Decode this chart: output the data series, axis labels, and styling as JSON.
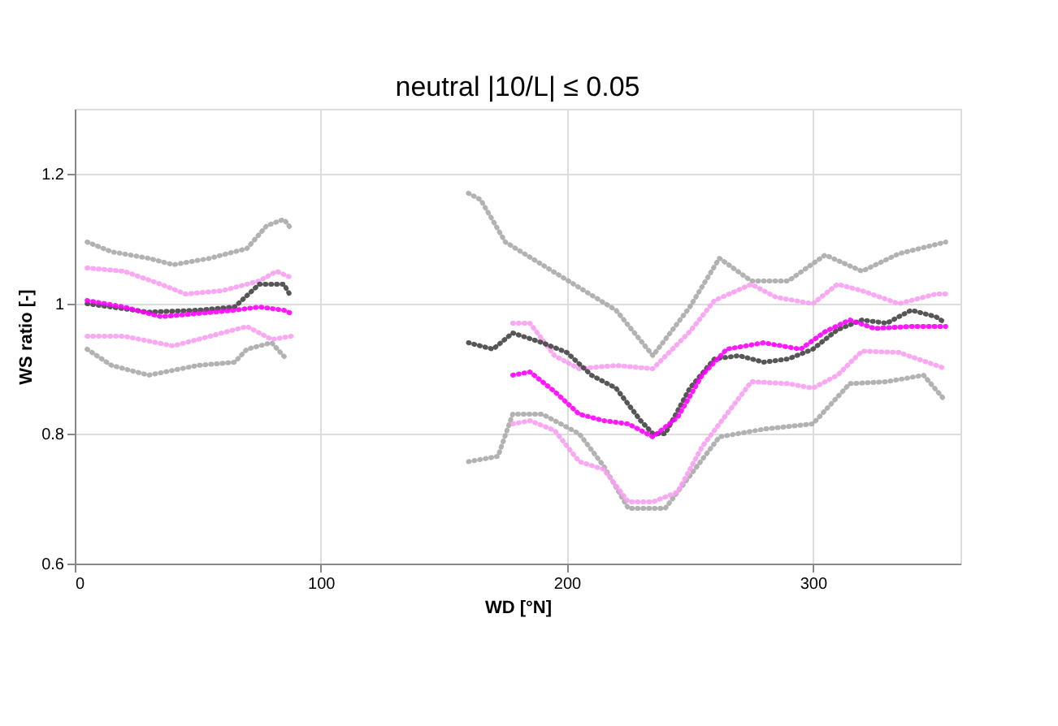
{
  "chart_data": {
    "type": "line",
    "title": "neutral |10/L| ≤ 0.05",
    "xlabel": "WD  [°N]",
    "ylabel": "WS ratio [-]",
    "xlim": [
      0,
      360
    ],
    "xticks": [
      0,
      100,
      200,
      300
    ],
    "ylim": [
      0.6,
      1.3
    ],
    "yticks": [
      0.6,
      0.8,
      1,
      1.2
    ],
    "grid": true,
    "line_style": "dotted",
    "legend": false,
    "series": [
      {
        "color": "#aaaaaa",
        "x": [
          5,
          15,
          30,
          40,
          55,
          70,
          78,
          85,
          88,
          120,
          160,
          165,
          175,
          190,
          205,
          220,
          235,
          250,
          262,
          275,
          290,
          305,
          320,
          335,
          354
        ],
        "values": [
          1.095,
          1.08,
          1.07,
          1.06,
          1.07,
          1.085,
          1.12,
          1.13,
          1.115,
          null,
          1.17,
          1.16,
          1.095,
          1.06,
          1.025,
          0.99,
          0.92,
          0.995,
          1.07,
          1.035,
          1.035,
          1.075,
          1.05,
          1.077,
          1.095
        ]
      },
      {
        "color": "#aaaaaa",
        "x": [
          5,
          15,
          30,
          50,
          65,
          70,
          80,
          86,
          120,
          160,
          172,
          178,
          190,
          205,
          215,
          225,
          240,
          250,
          262,
          280,
          300,
          315,
          330,
          345,
          354
        ],
        "values": [
          0.93,
          0.905,
          0.89,
          0.905,
          0.91,
          0.93,
          0.94,
          0.915,
          null,
          0.757,
          0.765,
          0.83,
          0.83,
          0.8,
          0.75,
          0.685,
          0.685,
          0.735,
          0.795,
          0.807,
          0.815,
          0.877,
          0.88,
          0.89,
          0.85
        ]
      },
      {
        "color": "#f7a0f0",
        "x": [
          5,
          20,
          35,
          45,
          60,
          75,
          82,
          88,
          120,
          178,
          185,
          195,
          205,
          220,
          235,
          250,
          260,
          275,
          285,
          300,
          310,
          320,
          335,
          350,
          354
        ],
        "values": [
          1.055,
          1.05,
          1.03,
          1.015,
          1.02,
          1.035,
          1.05,
          1.04,
          null,
          0.97,
          0.97,
          0.92,
          0.9,
          0.905,
          0.9,
          0.957,
          1.005,
          1.03,
          1.01,
          1.0,
          1.03,
          1.02,
          1.0,
          1.015,
          1.015
        ]
      },
      {
        "color": "#f7a0f0",
        "x": [
          5,
          20,
          40,
          55,
          70,
          80,
          88,
          120,
          178,
          185,
          195,
          205,
          215,
          225,
          235,
          245,
          255,
          265,
          275,
          290,
          300,
          310,
          320,
          335,
          354
        ],
        "values": [
          0.95,
          0.95,
          0.935,
          0.95,
          0.965,
          0.945,
          0.95,
          null,
          0.815,
          0.82,
          0.805,
          0.757,
          0.745,
          0.695,
          0.695,
          0.71,
          0.78,
          0.83,
          0.88,
          0.877,
          0.87,
          0.89,
          0.927,
          0.925,
          0.9
        ]
      },
      {
        "color": "#444444",
        "x": [
          5,
          30,
          50,
          65,
          75,
          85,
          88,
          120,
          160,
          170,
          178,
          190,
          200,
          210,
          220,
          230,
          235,
          240,
          250,
          260,
          270,
          280,
          290,
          300,
          310,
          320,
          330,
          340,
          350,
          354
        ],
        "values": [
          1.0,
          0.987,
          0.99,
          0.995,
          1.03,
          1.03,
          1.01,
          null,
          0.94,
          0.93,
          0.955,
          0.94,
          0.925,
          0.89,
          0.87,
          0.82,
          0.8,
          0.8,
          0.87,
          0.915,
          0.92,
          0.91,
          0.915,
          0.93,
          0.96,
          0.975,
          0.97,
          0.99,
          0.98,
          0.97
        ]
      },
      {
        "color": "#ff00ff",
        "x": [
          5,
          20,
          35,
          50,
          65,
          75,
          85,
          88,
          120,
          178,
          185,
          195,
          205,
          215,
          225,
          235,
          245,
          255,
          265,
          280,
          295,
          305,
          315,
          325,
          340,
          354
        ],
        "values": [
          1.005,
          0.995,
          0.98,
          0.985,
          0.99,
          0.995,
          0.99,
          0.985,
          null,
          0.89,
          0.895,
          0.865,
          0.83,
          0.82,
          0.815,
          0.795,
          0.825,
          0.89,
          0.93,
          0.94,
          0.93,
          0.957,
          0.975,
          0.962,
          0.965,
          0.965
        ]
      }
    ]
  }
}
